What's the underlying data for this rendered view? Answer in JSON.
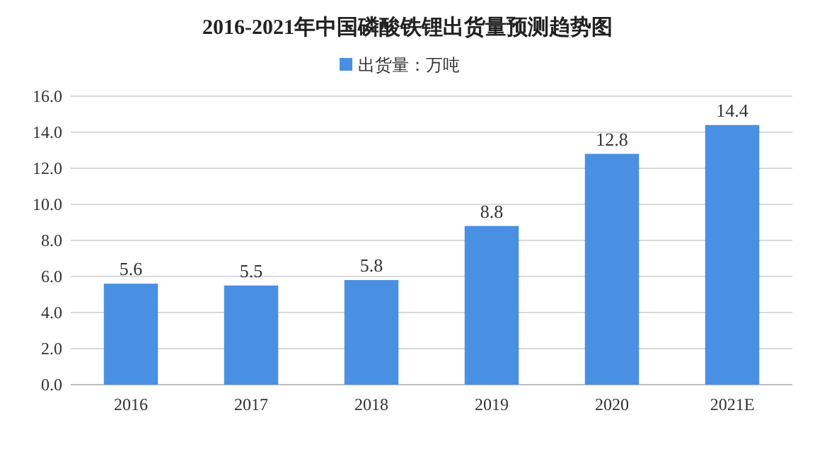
{
  "chart_data": {
    "type": "bar",
    "title": "2016-2021年中国磷酸铁锂出货量预测趋势图",
    "categories": [
      "2016",
      "2017",
      "2018",
      "2019",
      "2020",
      "2021E"
    ],
    "series": [
      {
        "name": "出货量：万吨",
        "color": "#4a90e2",
        "values": [
          5.6,
          5.5,
          5.8,
          8.8,
          12.8,
          14.4
        ]
      }
    ],
    "ylim": [
      0,
      16
    ],
    "yticks": [
      {
        "value": 0,
        "label": "0.0"
      },
      {
        "value": 2,
        "label": "2.0"
      },
      {
        "value": 4,
        "label": "4.0"
      },
      {
        "value": 6,
        "label": "6.0"
      },
      {
        "value": 8,
        "label": "8.0"
      },
      {
        "value": 10,
        "label": "10.0"
      },
      {
        "value": 12,
        "label": "12.0"
      },
      {
        "value": 14,
        "label": "14.0"
      },
      {
        "value": 16,
        "label": "16.0"
      }
    ],
    "grid": "y",
    "legend": "top",
    "data_labels": true
  }
}
